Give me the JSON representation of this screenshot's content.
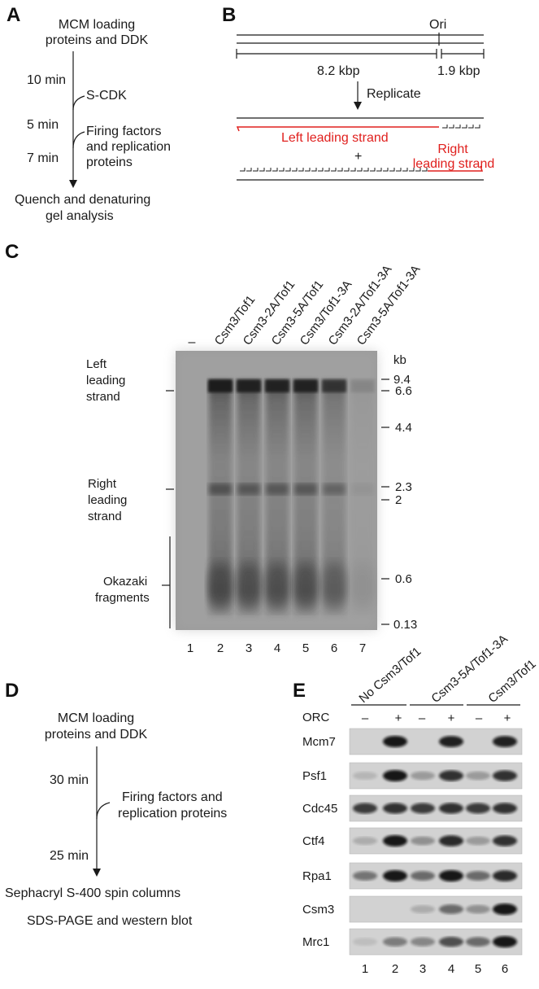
{
  "panel_a": {
    "label": "A",
    "start": [
      "MCM loading",
      "proteins and DDK"
    ],
    "step1_time": "10 min",
    "step1_add": "S-CDK",
    "step2_time": "5 min",
    "step2_add": [
      "Firing factors",
      "and replication",
      "proteins"
    ],
    "step3_time": "7 min",
    "end": [
      "Quench and denaturing",
      "gel analysis"
    ]
  },
  "panel_b": {
    "label": "B",
    "ori": "Ori",
    "left_length": "8.2 kbp",
    "right_length": "1.9 kbp",
    "replicate": "Replicate",
    "left_strand": "Left leading strand",
    "plus": "+",
    "right_strand": [
      "Right",
      "leading strand"
    ]
  },
  "panel_c": {
    "label": "C",
    "lanes": [
      "–",
      "Csm3/Tof1",
      "Csm3-2A/Tof1",
      "Csm3-5A/Tof1",
      "Csm3/Tof1-3A",
      "Csm3-2A/Tof1-3A",
      "Csm3-5A/Tof1-3A"
    ],
    "lane_numbers": [
      "1",
      "2",
      "3",
      "4",
      "5",
      "6",
      "7"
    ],
    "kb_unit": "kb",
    "markers": [
      "9.4",
      "6.6",
      "4.4",
      "2.3",
      "2",
      "0.6",
      "0.13"
    ],
    "left_leading": [
      "Left",
      "leading",
      "strand"
    ],
    "right_leading": [
      "Right",
      "leading",
      "strand"
    ],
    "okazaki": [
      "Okazaki",
      "fragments"
    ]
  },
  "panel_d": {
    "label": "D",
    "start": [
      "MCM loading",
      "proteins and DDK"
    ],
    "step1_time": "30 min",
    "step1_add": [
      "Firing factors and",
      "replication proteins"
    ],
    "step2_time": "25 min",
    "end1": "Sephacryl S-400 spin columns",
    "end2": "SDS-PAGE and western blot"
  },
  "panel_e": {
    "label": "E",
    "groups": [
      "No Csm3/Tof1",
      "Csm3-5A/Tof1-3A",
      "Csm3/Tof1"
    ],
    "orc_label": "ORC",
    "orc_states": [
      "–",
      "+",
      "–",
      "+",
      "–",
      "+"
    ],
    "proteins": [
      "Mcm7",
      "Psf1",
      "Cdc45",
      "Ctf4",
      "Rpa1",
      "Csm3",
      "Mrc1"
    ],
    "lane_numbers": [
      "1",
      "2",
      "3",
      "4",
      "5",
      "6"
    ]
  }
}
